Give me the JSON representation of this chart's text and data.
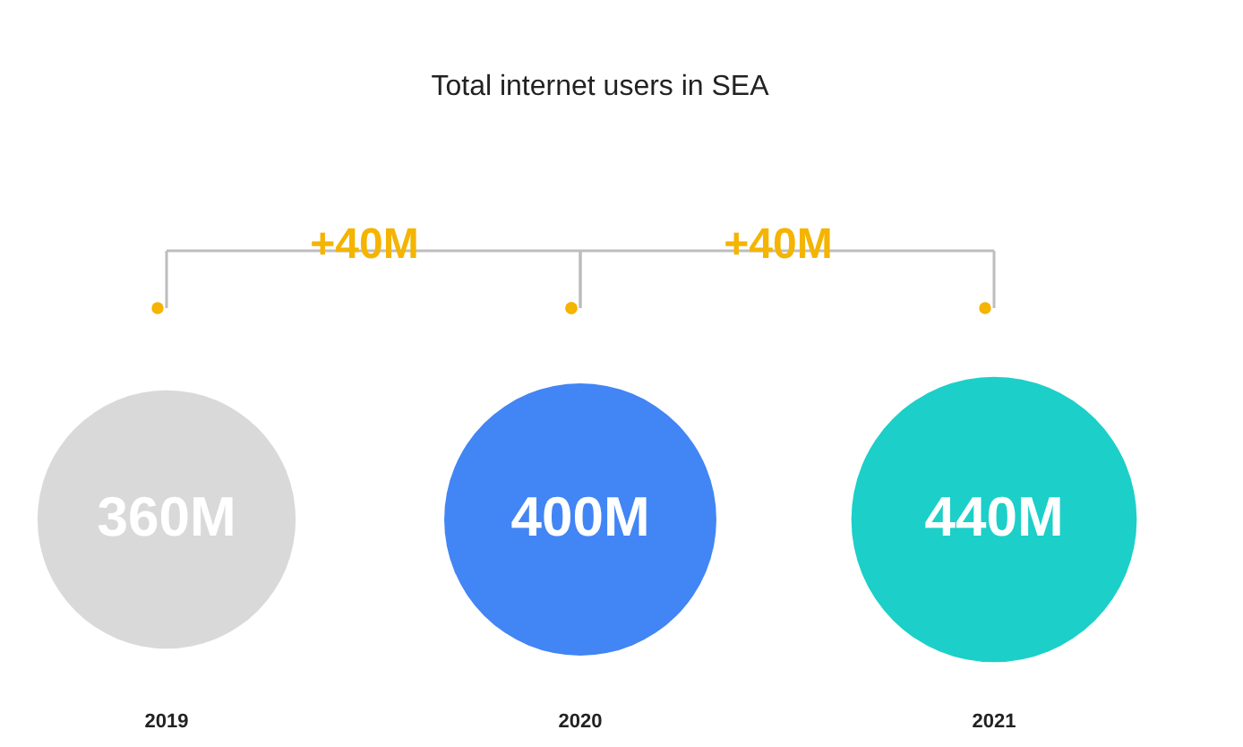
{
  "chart_data": {
    "type": "other",
    "title": "Total internet users in SEA",
    "categories": [
      "2019",
      "2020",
      "2021"
    ],
    "values": [
      360,
      400,
      440
    ],
    "value_labels": [
      "360M",
      "400M",
      "440M"
    ],
    "colors": [
      "#d9d9d9",
      "#4285f4",
      "#1ccfc9"
    ],
    "annotations": [
      "+40M",
      "+40M"
    ]
  }
}
